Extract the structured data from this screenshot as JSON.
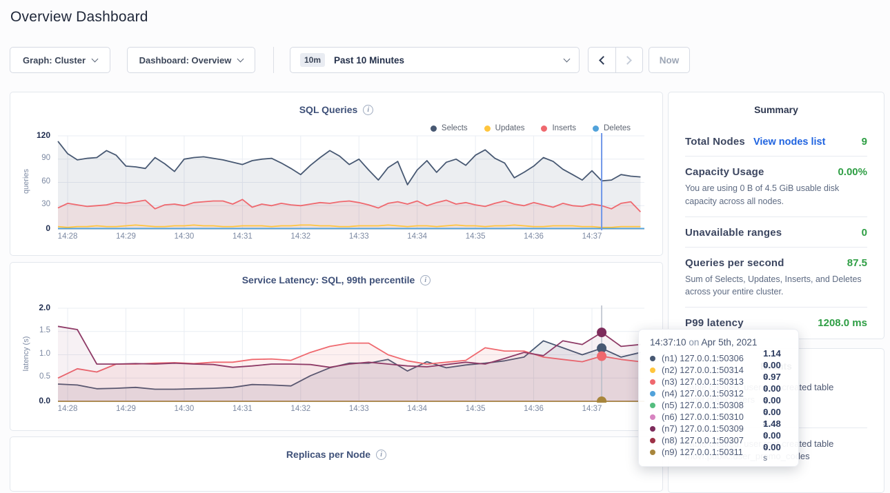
{
  "page": {
    "title": "Overview Dashboard"
  },
  "controls": {
    "graph_dropdown": "Graph: Cluster",
    "dashboard_dropdown": "Dashboard: Overview",
    "time_range": {
      "badge": "10m",
      "label": "Past 10 Minutes"
    },
    "now_button": "Now"
  },
  "chart_data": [
    {
      "id": "sql-queries",
      "type": "line",
      "title": "SQL Queries",
      "ylabel": "queries",
      "ymax": 120,
      "yticks": [
        0,
        30,
        60,
        90,
        120
      ],
      "xticks": [
        "14:28",
        "14:29",
        "14:30",
        "14:31",
        "14:32",
        "14:33",
        "14:34",
        "14:35",
        "14:36",
        "14:37"
      ],
      "x_start": "14:27:50",
      "interval_sec": 10,
      "grid": true,
      "legend_position": "top-right",
      "legend": [
        {
          "name": "Selects",
          "color": "#475872"
        },
        {
          "name": "Updates",
          "color": "#ffc53d"
        },
        {
          "name": "Inserts",
          "color": "#ef686e"
        },
        {
          "name": "Deletes",
          "color": "#51a2da"
        }
      ],
      "series": [
        {
          "name": "Selects",
          "color": "#475872",
          "fill": "rgba(71,88,114,0.10)",
          "values": [
            113,
            97,
            89,
            91,
            92,
            101,
            95,
            81,
            80,
            78,
            92,
            84,
            74,
            90,
            92,
            93,
            91,
            89,
            86,
            83,
            88,
            90,
            91,
            85,
            78,
            70,
            82,
            92,
            101,
            94,
            83,
            90,
            76,
            63,
            79,
            87,
            57,
            76,
            88,
            73,
            86,
            90,
            82,
            95,
            102,
            91,
            85,
            66,
            73,
            81,
            92,
            87,
            77,
            70,
            63,
            75,
            62,
            63,
            70,
            68,
            67
          ]
        },
        {
          "name": "Inserts",
          "color": "#ef686e",
          "fill": "rgba(239,104,110,0.12)",
          "values": [
            27,
            33,
            31,
            29,
            30,
            31,
            34,
            33,
            35,
            37,
            26,
            31,
            32,
            30,
            34,
            35,
            36,
            36,
            32,
            38,
            28,
            32,
            30,
            33,
            31,
            30,
            32,
            34,
            33,
            35,
            36,
            34,
            31,
            27,
            33,
            35,
            32,
            36,
            30,
            34,
            37,
            32,
            34,
            31,
            29,
            33,
            36,
            32,
            30,
            34,
            31,
            28,
            33,
            30,
            29,
            32,
            30,
            26,
            33,
            35,
            22
          ]
        },
        {
          "name": "Updates",
          "color": "#ffc53d",
          "values": [
            3,
            2,
            3,
            3,
            4,
            3,
            3,
            4,
            5,
            4,
            3,
            3,
            4,
            4,
            5,
            4,
            4,
            3,
            3,
            4,
            4,
            4,
            3,
            4,
            4,
            5,
            5,
            4,
            4,
            3,
            3,
            4,
            4,
            4,
            5,
            4,
            3,
            4,
            4,
            3,
            4,
            5,
            4,
            4,
            3,
            4,
            4,
            5,
            4,
            3,
            3,
            4,
            4,
            4,
            3,
            3,
            2,
            2,
            3,
            3,
            3
          ]
        },
        {
          "name": "Deletes",
          "color": "#51a2da",
          "flat": 0.5
        }
      ],
      "hover": {
        "t_sec": 560,
        "line_color": "#6f96e8",
        "line_width": 2
      }
    },
    {
      "id": "service-latency",
      "type": "line",
      "title": "Service Latency: SQL, 99th percentile",
      "ylabel": "latency (s)",
      "ymax": 2.0,
      "yticks": [
        0.0,
        0.5,
        1.0,
        1.5,
        2.0
      ],
      "xticks": [
        "14:28",
        "14:29",
        "14:30",
        "14:31",
        "14:32",
        "14:33",
        "14:34",
        "14:35",
        "14:36",
        "14:37"
      ],
      "x_start": "14:27:50",
      "interval_sec": 20,
      "grid": true,
      "series": [
        {
          "name": "(n9) 127.0.0.1:50311",
          "color": "#a8863c",
          "flat": 0
        },
        {
          "name": "(n1) 127.0.0.1:50306",
          "color": "#475872",
          "fill": "rgba(71,88,114,0.10)",
          "values": [
            0.37,
            0.35,
            0.27,
            0.28,
            0.3,
            0.26,
            0.26,
            0.27,
            0.28,
            0.3,
            0.36,
            0.35,
            0.33,
            0.55,
            0.72,
            0.82,
            0.82,
            0.9,
            0.65,
            0.85,
            0.72,
            0.78,
            0.82,
            0.87,
            0.95,
            1.3,
            1.15,
            1.0,
            1.14,
            0.95,
            1.05
          ]
        },
        {
          "name": "(n3) 127.0.0.1:50313",
          "color": "#ef686e",
          "fill": "rgba(239,104,110,0.10)",
          "values": [
            0.5,
            0.7,
            0.63,
            0.8,
            0.8,
            0.82,
            0.83,
            0.81,
            0.84,
            0.84,
            0.9,
            0.91,
            0.88,
            1.05,
            1.18,
            1.25,
            1.25,
            1.0,
            0.87,
            0.8,
            0.84,
            0.88,
            1.15,
            1.08,
            1.08,
            0.95,
            0.9,
            0.85,
            0.97,
            0.9,
            0.85
          ]
        },
        {
          "name": "(n7) 127.0.0.1:50309",
          "color": "#8e3a66",
          "fill": "rgba(142,58,102,0.07)",
          "values": [
            1.61,
            1.54,
            0.8,
            0.8,
            0.81,
            0.8,
            0.82,
            0.8,
            0.79,
            0.73,
            0.76,
            0.8,
            0.8,
            0.79,
            0.73,
            0.8,
            0.84,
            0.8,
            0.76,
            0.74,
            0.79,
            0.84,
            0.8,
            0.92,
            1.05,
            0.98,
            1.3,
            1.22,
            1.48,
            1.18,
            1.22
          ]
        }
      ],
      "hover": {
        "t_sec": 560,
        "line_color": "#b6bcc8",
        "line_width": 1.5,
        "dots": [
          {
            "v": 1.48,
            "color": "#7d2c5c"
          },
          {
            "v": 1.14,
            "color": "#475872"
          },
          {
            "v": 0.97,
            "color": "#ef686e"
          },
          {
            "v": 0.0,
            "color": "#a8863c"
          }
        ]
      }
    },
    {
      "id": "replicas-per-node",
      "type": "line",
      "title": "Replicas per Node",
      "series": []
    }
  ],
  "summary": {
    "title": "Summary",
    "rows": [
      {
        "label": "Total Nodes",
        "link": "View nodes list",
        "value": "9"
      },
      {
        "label": "Capacity Usage",
        "value": "0.00%",
        "desc": "You are using 0 B of 4.5 GiB usable disk capacity across all nodes."
      },
      {
        "label": "Unavailable ranges",
        "value": "0"
      },
      {
        "label": "Queries per second",
        "value": "87.5",
        "desc": "Sum of Selects, Updates, Inserts, and Deletes across your entire cluster."
      },
      {
        "label": "P99 latency",
        "value": "1208.0 ms"
      }
    ]
  },
  "events": {
    "title": "Events",
    "items": [
      {
        "text": "Table created: user root created table movr.public.users"
      },
      {
        "text": "Table created: user root created table movr.public.user_promo_codes"
      }
    ]
  },
  "tooltip": {
    "time": "14:37:10",
    "separator": "on",
    "date": "Apr 5th, 2021",
    "rows": [
      {
        "node": "(n1) 127.0.0.1:50306",
        "value": "1.14",
        "unit": "s",
        "color": "#475872"
      },
      {
        "node": "(n2) 127.0.0.1:50314",
        "value": "0.00",
        "unit": "s",
        "color": "#ffc53d"
      },
      {
        "node": "(n3) 127.0.0.1:50313",
        "value": "0.97",
        "unit": "s",
        "color": "#ef686e"
      },
      {
        "node": "(n4) 127.0.0.1:50312",
        "value": "0.00",
        "unit": "s",
        "color": "#51a2da"
      },
      {
        "node": "(n5) 127.0.0.1:50308",
        "value": "0.00",
        "unit": "s",
        "color": "#55bd7f"
      },
      {
        "node": "(n6) 127.0.0.1:50310",
        "value": "0.00",
        "unit": "s",
        "color": "#d783c0"
      },
      {
        "node": "(n7) 127.0.0.1:50309",
        "value": "1.48",
        "unit": "s",
        "color": "#7d2c5c"
      },
      {
        "node": "(n8) 127.0.0.1:50307",
        "value": "0.00",
        "unit": "s",
        "color": "#9d3247"
      },
      {
        "node": "(n9) 127.0.0.1:50311",
        "value": "0.00",
        "unit": "s",
        "color": "#a8863c"
      }
    ]
  }
}
